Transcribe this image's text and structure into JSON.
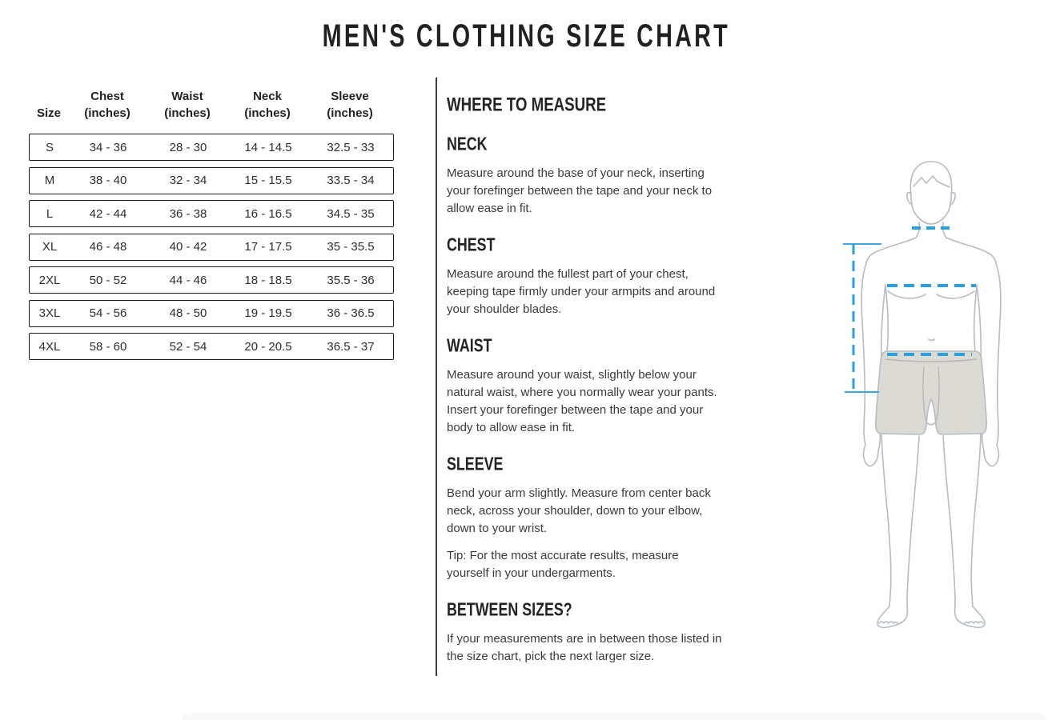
{
  "page": {
    "title": "MEN'S CLOTHING SIZE CHART"
  },
  "size_table": {
    "columns": [
      {
        "label": "Size",
        "sub": ""
      },
      {
        "label": "Chest",
        "sub": "(inches)"
      },
      {
        "label": "Waist",
        "sub": "(inches)"
      },
      {
        "label": "Neck",
        "sub": "(inches)"
      },
      {
        "label": "Sleeve",
        "sub": "(inches)"
      }
    ],
    "rows": [
      [
        "S",
        "34 - 36",
        "28 - 30",
        "14 - 14.5",
        "32.5 - 33"
      ],
      [
        "M",
        "38 - 40",
        "32 - 34",
        "15 - 15.5",
        "33.5 - 34"
      ],
      [
        "L",
        "42 - 44",
        "36 - 38",
        "16 - 16.5",
        "34.5 - 35"
      ],
      [
        "XL",
        "46 - 48",
        "40 - 42",
        "17 - 17.5",
        "35 - 35.5"
      ],
      [
        "2XL",
        "50 - 52",
        "44 - 46",
        "18 - 18.5",
        "35.5 - 36"
      ],
      [
        "3XL",
        "54 - 56",
        "48 - 50",
        "19 - 19.5",
        "36 - 36.5"
      ],
      [
        "4XL",
        "58 - 60",
        "52 - 54",
        "20 - 20.5",
        "36.5 - 37"
      ]
    ]
  },
  "measure_guide": {
    "title": "WHERE TO MEASURE",
    "sections": [
      {
        "heading": "NECK",
        "paragraphs": [
          "Measure around the base of your neck, inserting your forefinger between the tape and your neck to allow ease in fit."
        ]
      },
      {
        "heading": "CHEST",
        "paragraphs": [
          "Measure around the fullest part of your chest, keeping tape firmly under your armpits and around your shoulder blades."
        ]
      },
      {
        "heading": "WAIST",
        "paragraphs": [
          "Measure around your waist, slightly below your natural waist, where you normally wear your pants. Insert your forefinger between the tape and your body to allow ease in fit."
        ]
      },
      {
        "heading": "SLEEVE",
        "paragraphs": [
          "Bend your arm slightly. Measure from center back neck, across your shoulder, down to your elbow, down to your wrist.",
          "Tip: For the most accurate results, measure yourself in your undergarments."
        ]
      },
      {
        "heading": "BETWEEN SIZES?",
        "paragraphs": [
          "If your measurements are in between those listed in the size chart, pick the next larger size."
        ]
      }
    ]
  },
  "figure": {
    "description": "male-body-measurement-illustration",
    "accent_color": "#2b9fdb",
    "outline_color": "#b5bcc3",
    "boxer_fill": "#dcdad5",
    "measure_lines": [
      "neck",
      "chest",
      "waist",
      "torso-length"
    ]
  }
}
